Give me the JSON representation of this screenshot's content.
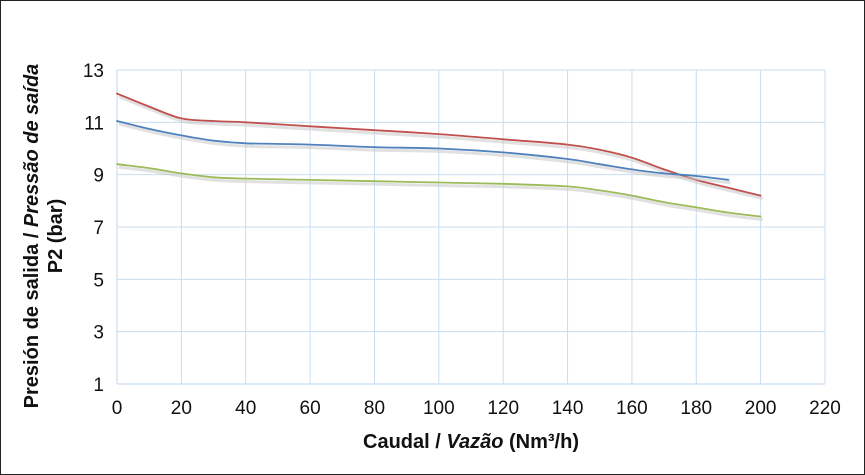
{
  "chart_data": {
    "type": "line",
    "xlabel_main": "Caudal / ",
    "xlabel_italic": "Vazão",
    "xlabel_unit": " (Nm³/h)",
    "ylabel_line1_main": "Presión de salida / ",
    "ylabel_line1_italic": "Pressão de saída",
    "ylabel_line2": "P2 (bar)",
    "xlim": [
      0,
      220
    ],
    "ylim": [
      1,
      13
    ],
    "xticks": [
      0,
      20,
      40,
      60,
      80,
      100,
      120,
      140,
      160,
      180,
      200,
      220
    ],
    "yticks": [
      1,
      3,
      5,
      7,
      9,
      11,
      13
    ],
    "grid": true,
    "series": [
      {
        "color": "#c0504d",
        "points": [
          [
            0,
            12.1
          ],
          [
            10,
            11.6
          ],
          [
            20,
            11.15
          ],
          [
            30,
            11.05
          ],
          [
            40,
            11.0
          ],
          [
            60,
            10.85
          ],
          [
            80,
            10.7
          ],
          [
            100,
            10.55
          ],
          [
            120,
            10.35
          ],
          [
            140,
            10.15
          ],
          [
            150,
            9.95
          ],
          [
            160,
            9.65
          ],
          [
            170,
            9.2
          ],
          [
            180,
            8.8
          ],
          [
            190,
            8.5
          ],
          [
            200,
            8.2
          ]
        ]
      },
      {
        "color": "#4f81bd",
        "points": [
          [
            0,
            11.05
          ],
          [
            10,
            10.75
          ],
          [
            20,
            10.5
          ],
          [
            30,
            10.3
          ],
          [
            40,
            10.2
          ],
          [
            60,
            10.15
          ],
          [
            80,
            10.05
          ],
          [
            100,
            10.0
          ],
          [
            120,
            9.85
          ],
          [
            140,
            9.6
          ],
          [
            150,
            9.4
          ],
          [
            160,
            9.2
          ],
          [
            170,
            9.05
          ],
          [
            180,
            8.95
          ],
          [
            190,
            8.8
          ]
        ]
      },
      {
        "color": "#9bbb59",
        "points": [
          [
            0,
            9.4
          ],
          [
            10,
            9.25
          ],
          [
            20,
            9.05
          ],
          [
            30,
            8.9
          ],
          [
            40,
            8.85
          ],
          [
            60,
            8.8
          ],
          [
            80,
            8.75
          ],
          [
            100,
            8.7
          ],
          [
            120,
            8.65
          ],
          [
            140,
            8.55
          ],
          [
            150,
            8.4
          ],
          [
            160,
            8.2
          ],
          [
            170,
            7.95
          ],
          [
            180,
            7.75
          ],
          [
            190,
            7.55
          ],
          [
            200,
            7.4
          ]
        ]
      }
    ]
  }
}
